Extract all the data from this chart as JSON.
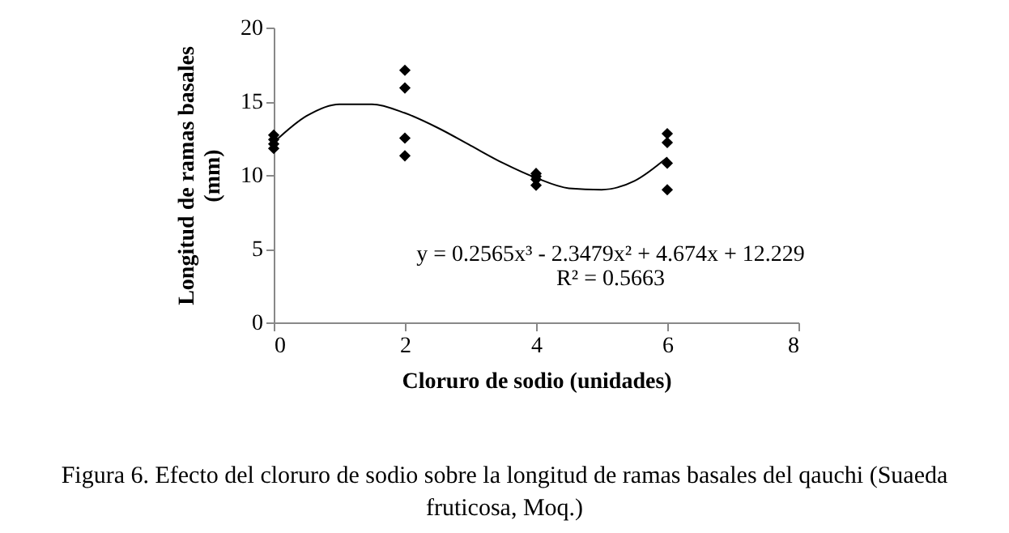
{
  "chart_data": {
    "type": "scatter",
    "xlabel": "Cloruro de sodio (unidades)",
    "ylabel": "Longitud de ramas basales (mm)",
    "xlim": [
      0,
      8
    ],
    "xticks": [
      0,
      2,
      4,
      6,
      8
    ],
    "ylim": [
      0,
      20
    ],
    "yticks": [
      0,
      5,
      10,
      15,
      20
    ],
    "grid": false,
    "marker": "diamond",
    "series": [
      {
        "color": "#000000",
        "x": [
          0,
          0,
          0,
          0,
          2,
          2,
          2,
          2,
          4,
          4,
          4,
          4,
          6,
          6,
          6,
          6
        ],
        "values": [
          12.7,
          12.4,
          12.1,
          11.8,
          17.1,
          15.9,
          12.5,
          11.3,
          10.1,
          9.9,
          9.7,
          9.3,
          12.8,
          12.2,
          10.8,
          9.0
        ]
      },
      {
        "type": "line",
        "color": "#000000",
        "marker": "none",
        "line_style": "solid",
        "x": [
          0,
          0.5,
          1,
          1.5,
          2,
          2.5,
          3,
          3.5,
          4,
          4.5,
          5,
          5.5,
          6
        ],
        "values": [
          12.2,
          14.0,
          14.8,
          14.8,
          14.2,
          13.2,
          12.0,
          10.8,
          9.8,
          9.1,
          9.0,
          9.6,
          11.2
        ]
      }
    ],
    "annotations": [
      "y = 0.2565x³ - 2.3479x² + 4.674x + 12.229",
      "R² = 0.5663",
      "Figura 6. Efecto del cloruro de sodio sobre la longitud de ramas basales del qauchi (Suaeda fruticosa, Moq.)"
    ]
  }
}
